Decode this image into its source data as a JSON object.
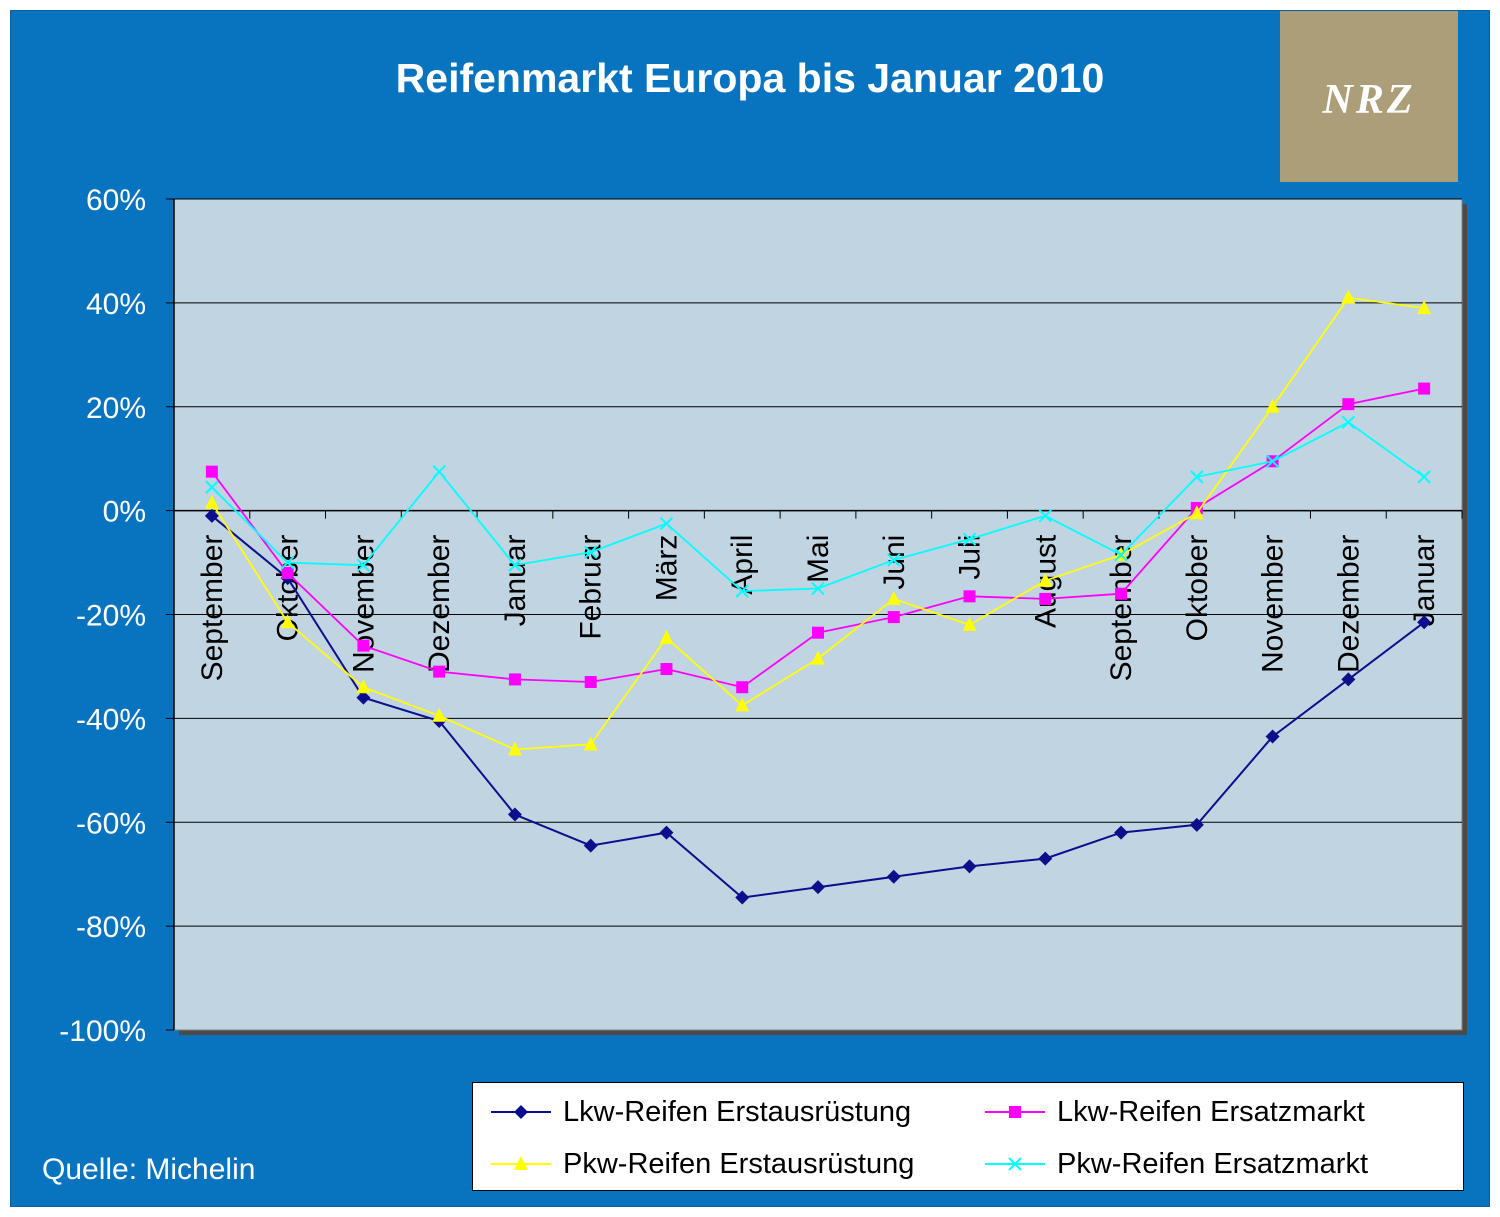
{
  "colors": {
    "background": "#0874bf",
    "plot_area": "#c0d4e2",
    "logo_bg": "#ab9e79",
    "lkw_erstausruestung": "#0b0f8c",
    "lkw_ersatzmarkt": "#ff00ff",
    "pkw_erstausruestung": "#ffff00",
    "pkw_ersatzmarkt": "#00ffff"
  },
  "logo": {
    "text": "NRZ"
  },
  "source": "Quelle: Michelin",
  "chart_data": {
    "type": "line",
    "title": "Reifenmarkt Europa bis Januar 2010",
    "xlabel": "",
    "ylabel": "",
    "ylim": [
      -100,
      60
    ],
    "y_ticks": [
      "60%",
      "40%",
      "20%",
      "0%",
      "-20%",
      "-40%",
      "-60%",
      "-80%",
      "-100%"
    ],
    "y_tick_values": [
      60,
      40,
      20,
      0,
      -20,
      -40,
      -60,
      -80,
      -100
    ],
    "grid": true,
    "legend_position": "bottom-right",
    "categories": [
      "September",
      "Oktober",
      "November",
      "Dezember",
      "Januar",
      "Februar",
      "März",
      "April",
      "Mai",
      "Juni",
      "Juli",
      "August",
      "September",
      "Oktober",
      "November",
      "Dezember",
      "Januar"
    ],
    "series": [
      {
        "name": "Lkw-Reifen Erstausrüstung",
        "marker": "diamond",
        "color": "#0b0f8c",
        "values": [
          -1,
          -13,
          -36,
          -40.5,
          -58.5,
          -64.5,
          -62,
          -74.5,
          -72.5,
          -70.5,
          -68.5,
          -67,
          -62,
          -60.5,
          -43.5,
          -32.5,
          -21.5
        ]
      },
      {
        "name": "Lkw-Reifen Ersatzmarkt",
        "marker": "square",
        "color": "#ff00ff",
        "values": [
          7.5,
          -12,
          -26,
          -31,
          -32.5,
          -33,
          -30.5,
          -34,
          -23.5,
          -20.5,
          -16.5,
          -17,
          -16,
          0.5,
          9.5,
          20.5,
          23.5
        ]
      },
      {
        "name": "Pkw-Reifen Erstausrüstung",
        "marker": "triangle",
        "color": "#ffff00",
        "values": [
          1.5,
          -21.5,
          -34,
          -39.5,
          -46,
          -45,
          -24.5,
          -37.5,
          -28.5,
          -17,
          -22,
          -13.5,
          -8.5,
          -0.5,
          20,
          41,
          39
        ]
      },
      {
        "name": "Pkw-Reifen Ersatzmarkt",
        "marker": "x",
        "color": "#00ffff",
        "values": [
          4.5,
          -10,
          -10.5,
          7.5,
          -10.5,
          -8,
          -2.5,
          -15.5,
          -15,
          -9.5,
          -5.5,
          -1,
          -8.5,
          6.5,
          9.5,
          17,
          6.5
        ]
      }
    ]
  }
}
